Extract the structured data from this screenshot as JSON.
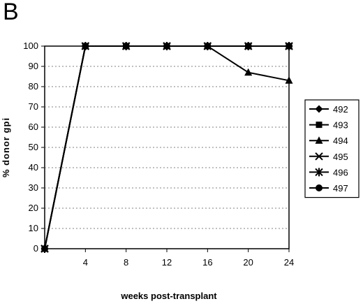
{
  "panel_label": "B",
  "chart_data": {
    "type": "line",
    "title": "",
    "xlabel": "weeks    post-transplant",
    "ylabel": "% donor gpi",
    "x_ticks": [
      4,
      8,
      12,
      16,
      20,
      24
    ],
    "y_ticks": [
      0,
      10,
      20,
      30,
      40,
      50,
      60,
      70,
      80,
      90,
      100
    ],
    "xlim": [
      0,
      24
    ],
    "ylim": [
      0,
      100
    ],
    "grid": "horizontal dashed",
    "legend_position": "right",
    "series": [
      {
        "name": "492",
        "marker": "diamond",
        "x": [
          0,
          4,
          8,
          12,
          16,
          20,
          24
        ],
        "y": [
          0,
          100,
          100,
          100,
          100,
          100,
          100
        ]
      },
      {
        "name": "493",
        "marker": "square",
        "x": [
          0,
          4,
          8,
          12,
          16,
          20,
          24
        ],
        "y": [
          0,
          100,
          100,
          100,
          100,
          100,
          100
        ]
      },
      {
        "name": "494",
        "marker": "triangle",
        "x": [
          0,
          4,
          8,
          12,
          16,
          20,
          24
        ],
        "y": [
          0,
          100,
          100,
          100,
          100,
          87,
          83
        ]
      },
      {
        "name": "495",
        "marker": "x",
        "x": [
          0,
          4,
          8,
          12,
          16,
          20,
          24
        ],
        "y": [
          0,
          100,
          100,
          100,
          100,
          100,
          100
        ]
      },
      {
        "name": "496",
        "marker": "star",
        "x": [
          0,
          4,
          8,
          12,
          16,
          20,
          24
        ],
        "y": [
          0,
          100,
          100,
          100,
          100,
          100,
          100
        ]
      },
      {
        "name": "497",
        "marker": "circle",
        "x": [
          0,
          4,
          8,
          12,
          16,
          20,
          24
        ],
        "y": [
          0,
          100,
          100,
          100,
          100,
          100,
          100
        ]
      }
    ],
    "colors": {
      "line": "#000000",
      "grid": "#808080"
    }
  }
}
